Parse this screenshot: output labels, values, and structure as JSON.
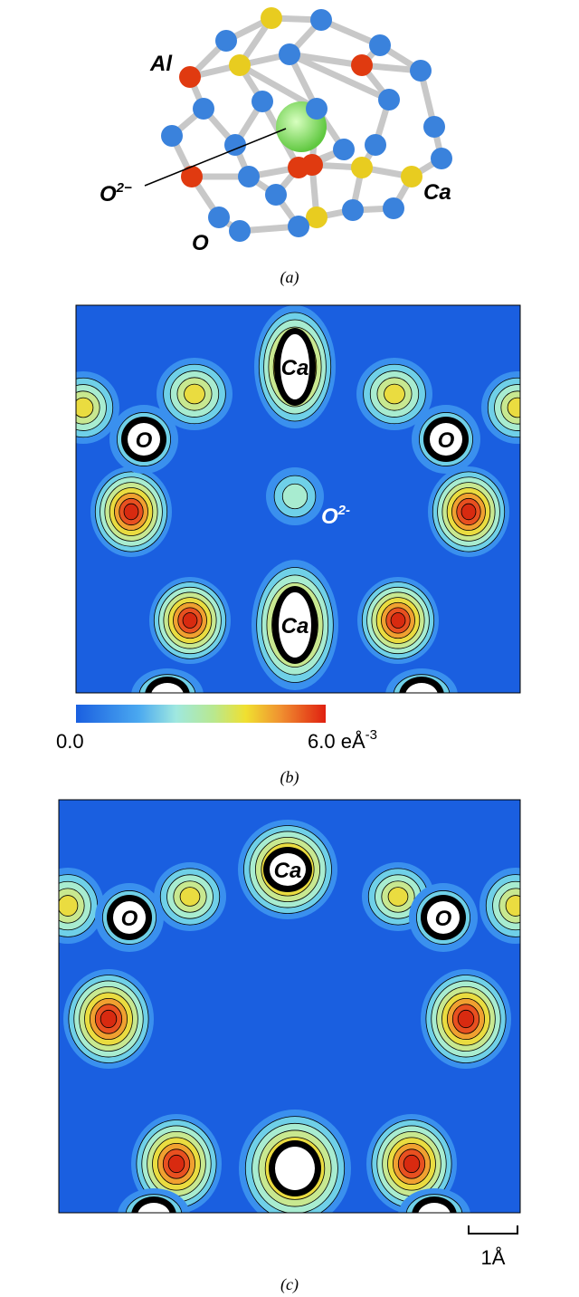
{
  "panels": [
    {
      "label": "(a)",
      "atoms": {
        "al": "Al",
        "cage_anion": {
          "base": "O",
          "sup": "2−"
        },
        "o": "O",
        "ca": "Ca"
      }
    },
    {
      "label": "(b)",
      "atom_labels": [
        "Ca",
        "O",
        "O",
        {
          "base": "O",
          "sup": "2-"
        },
        "Ca"
      ],
      "colorbar": {
        "min": "0.0",
        "max": "6.0",
        "unit": "eÅ",
        "unit_sup": "-3"
      }
    },
    {
      "label": "(c)",
      "atom_labels": [
        "Ca",
        "O",
        "O"
      ],
      "scale_bar": "1Å"
    }
  ]
}
